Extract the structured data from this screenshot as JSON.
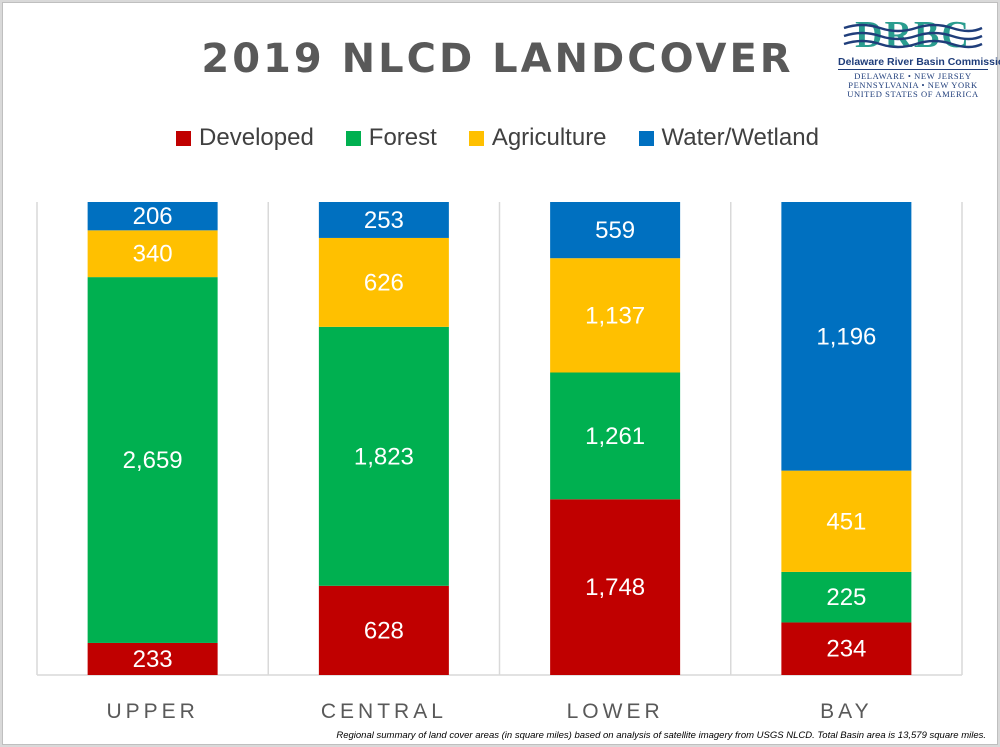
{
  "title": "2019 NLCD LANDCOVER",
  "logo": {
    "mark_text": "DRBC",
    "name": "Delaware River Basin Commission",
    "line1": "DELAWARE  •  NEW JERSEY",
    "line2": "PENNSYLVANIA  •  NEW YORK",
    "line3": "UNITED STATES OF AMERICA"
  },
  "footnote": "Regional summary of land cover areas (in square miles) based on analysis of satellite imagery from USGS NLCD. Total Basin area is 13,579 square miles.",
  "colors": {
    "developed": "#c00000",
    "forest": "#00b050",
    "agriculture": "#ffc000",
    "water": "#0070c0"
  },
  "chart_data": {
    "type": "bar",
    "stacked": "100%",
    "title": "2019 NLCD LANDCOVER",
    "categories": [
      "UPPER",
      "CENTRAL",
      "LOWER",
      "BAY"
    ],
    "series": [
      {
        "name": "Developed",
        "color": "#c00000",
        "values": [
          233,
          628,
          1748,
          234
        ],
        "labels": [
          "233",
          "628",
          "1,748",
          "234"
        ]
      },
      {
        "name": "Forest",
        "color": "#00b050",
        "values": [
          2659,
          1823,
          1261,
          225
        ],
        "labels": [
          "2,659",
          "1,823",
          "1,261",
          "225"
        ]
      },
      {
        "name": "Agriculture",
        "color": "#ffc000",
        "values": [
          340,
          626,
          1137,
          451
        ],
        "labels": [
          "340",
          "626",
          "1,137",
          "451"
        ]
      },
      {
        "name": "Water/Wetland",
        "color": "#0070c0",
        "values": [
          206,
          253,
          559,
          1196
        ],
        "labels": [
          "206",
          "253",
          "559",
          "1,196"
        ]
      }
    ],
    "legend": "top-center",
    "grid": false
  }
}
